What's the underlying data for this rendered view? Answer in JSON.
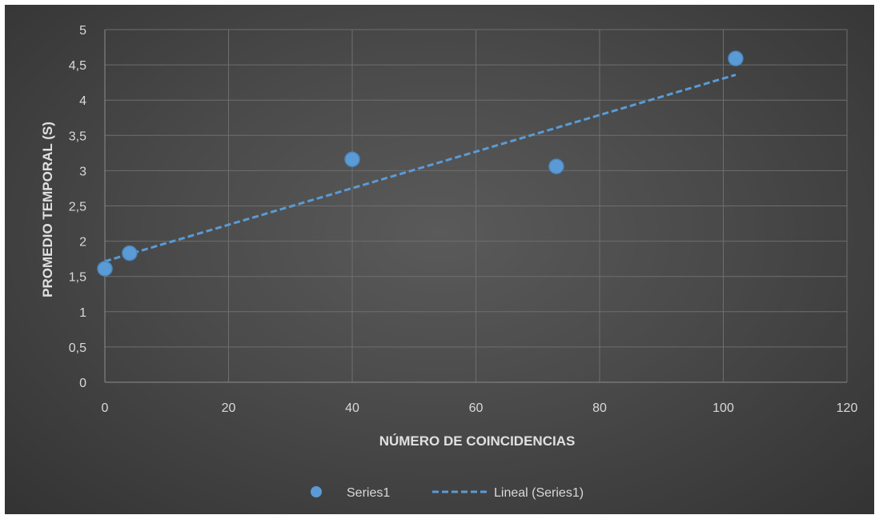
{
  "chart_data": {
    "type": "scatter",
    "title": "",
    "xlabel": "NÚMERO DE COINCIDENCIAS",
    "ylabel": "PROMEDIO TEMPORAL (S)",
    "xlim": [
      0,
      120
    ],
    "ylim": [
      0,
      5
    ],
    "x_ticks": [
      "0",
      "20",
      "40",
      "60",
      "80",
      "100",
      "120"
    ],
    "y_ticks": [
      "0",
      "0,5",
      "1",
      "1,5",
      "2",
      "2,5",
      "3",
      "3,5",
      "4",
      "4,5",
      "5"
    ],
    "grid": true,
    "legend_position": "bottom",
    "series": [
      {
        "name": "Series1",
        "color": "#5b9bd5",
        "x": [
          0,
          4,
          40,
          73,
          102
        ],
        "y": [
          1.61,
          1.83,
          3.16,
          3.06,
          4.59
        ]
      }
    ],
    "trendline": {
      "name": "Lineal (Series1)",
      "type": "linear",
      "color": "#5b9bd5",
      "style": "dashed",
      "x_range": [
        0,
        102
      ]
    }
  }
}
